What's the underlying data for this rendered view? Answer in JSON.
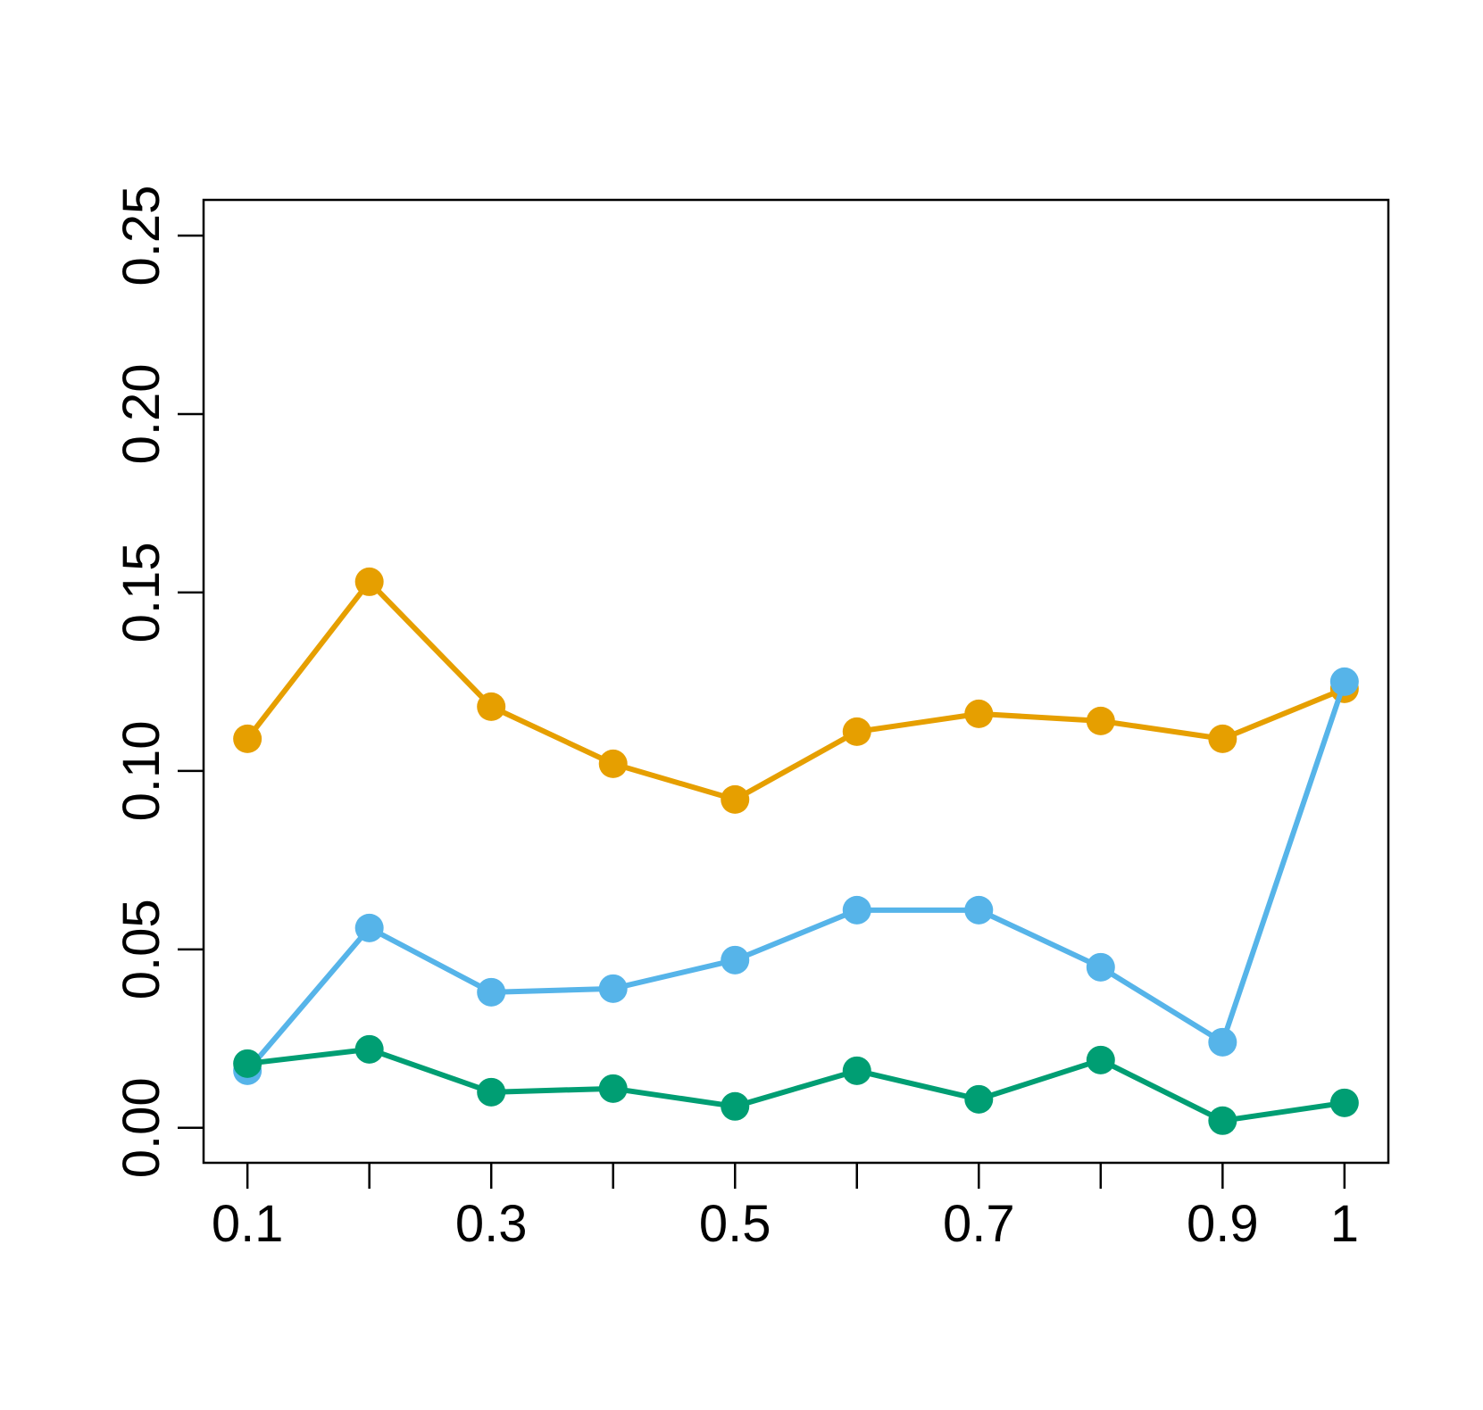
{
  "chart_data": {
    "type": "line",
    "title": "",
    "xlabel": "",
    "ylabel": "",
    "x": [
      0.1,
      0.2,
      0.3,
      0.4,
      0.5,
      0.6,
      0.7,
      0.8,
      0.9,
      1.0
    ],
    "xlim": [
      0.064,
      1.036
    ],
    "ylim": [
      -0.0098,
      0.26
    ],
    "x_ticks": [
      0.1,
      0.2,
      0.3,
      0.4,
      0.5,
      0.6,
      0.7,
      0.8,
      0.9,
      1.0
    ],
    "x_tick_labels": [
      "0.1",
      "",
      "0.3",
      "",
      "0.5",
      "",
      "0.7",
      "",
      "0.9",
      "1"
    ],
    "y_ticks": [
      0.0,
      0.05,
      0.1,
      0.15,
      0.2,
      0.25
    ],
    "y_tick_labels": [
      "0.00",
      "0.05",
      "0.10",
      "0.15",
      "0.20",
      "0.25"
    ],
    "grid": false,
    "legend": "none",
    "series": [
      {
        "color": "#E69F00",
        "values": [
          0.109,
          0.153,
          0.118,
          0.102,
          0.092,
          0.111,
          0.116,
          0.114,
          0.109,
          0.123
        ]
      },
      {
        "color": "#56B4E9",
        "values": [
          0.016,
          0.056,
          0.038,
          0.039,
          0.047,
          0.061,
          0.061,
          0.045,
          0.024,
          0.125
        ]
      },
      {
        "color": "#009E73",
        "values": [
          0.018,
          0.022,
          0.01,
          0.011,
          0.006,
          0.016,
          0.008,
          0.019,
          0.002,
          0.007
        ]
      }
    ]
  }
}
